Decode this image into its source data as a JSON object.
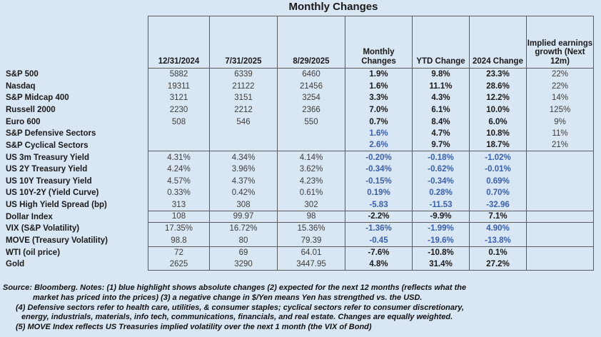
{
  "chart_data": {
    "type": "table",
    "title": "Monthly Changes",
    "columns": [
      "",
      "12/31/2024",
      "7/31/2025",
      "8/29/2025",
      "Monthly Changes",
      "YTD Change",
      "2024 Change",
      "Implied earnings growth (Next 12m)"
    ],
    "rows": [
      {
        "label": "S&P 500",
        "values": [
          "5882",
          "6339",
          "6460"
        ],
        "changes": [
          "1.9%",
          "9.8%",
          "23.3%"
        ],
        "blue": [
          false,
          false,
          false
        ],
        "implied": "22%",
        "end": false
      },
      {
        "label": "Nasdaq",
        "values": [
          "19311",
          "21122",
          "21456"
        ],
        "changes": [
          "1.6%",
          "11.1%",
          "28.6%"
        ],
        "blue": [
          false,
          false,
          false
        ],
        "implied": "22%",
        "end": false
      },
      {
        "label": "S&P Midcap 400",
        "values": [
          "3121",
          "3151",
          "3254"
        ],
        "changes": [
          "3.3%",
          "4.3%",
          "12.2%"
        ],
        "blue": [
          false,
          false,
          false
        ],
        "implied": "14%",
        "end": false
      },
      {
        "label": "Russell 2000",
        "values": [
          "2230",
          "2212",
          "2366"
        ],
        "changes": [
          "7.0%",
          "6.1%",
          "10.0%"
        ],
        "blue": [
          false,
          false,
          false
        ],
        "implied": "125%",
        "end": false
      },
      {
        "label": "Euro 600",
        "values": [
          "508",
          "546",
          "550"
        ],
        "changes": [
          "0.7%",
          "8.4%",
          "6.0%"
        ],
        "blue": [
          false,
          false,
          false
        ],
        "implied": "9%",
        "end": false
      },
      {
        "label": "S&P Defensive Sectors",
        "values": [
          "",
          "",
          ""
        ],
        "changes": [
          "1.6%",
          "4.7%",
          "10.8%"
        ],
        "blue": [
          true,
          false,
          false
        ],
        "implied": "11%",
        "end": false
      },
      {
        "label": "S&P Cyclical Sectors",
        "values": [
          "",
          "",
          ""
        ],
        "changes": [
          "2.6%",
          "9.7%",
          "18.7%"
        ],
        "blue": [
          true,
          false,
          false
        ],
        "implied": "21%",
        "end": true
      },
      {
        "label": "US 3m Treasury Yield",
        "values": [
          "4.31%",
          "4.34%",
          "4.14%"
        ],
        "changes": [
          "-0.20%",
          "-0.18%",
          "-1.02%"
        ],
        "blue": [
          true,
          true,
          true
        ],
        "implied": "",
        "end": false
      },
      {
        "label": "US 2Y Treasury Yield",
        "values": [
          "4.24%",
          "3.96%",
          "3.62%"
        ],
        "changes": [
          "-0.34%",
          "-0.62%",
          "-0.01%"
        ],
        "blue": [
          true,
          true,
          true
        ],
        "implied": "",
        "end": false
      },
      {
        "label": "US 10Y Treasury Yield",
        "values": [
          "4.57%",
          "4.37%",
          "4.23%"
        ],
        "changes": [
          "-0.15%",
          "-0.34%",
          "0.69%"
        ],
        "blue": [
          true,
          true,
          true
        ],
        "implied": "",
        "end": false
      },
      {
        "label": "US 10Y-2Y (Yield Curve)",
        "values": [
          "0.33%",
          "0.42%",
          "0.61%"
        ],
        "changes": [
          "0.19%",
          "0.28%",
          "0.70%"
        ],
        "blue": [
          true,
          true,
          true
        ],
        "implied": "",
        "end": false
      },
      {
        "label": "US High Yield Spread (bp)",
        "values": [
          "313",
          "308",
          "302"
        ],
        "changes": [
          "-5.83",
          "-11.53",
          "-32.96"
        ],
        "blue": [
          true,
          true,
          true
        ],
        "implied": "",
        "end": true
      },
      {
        "label": "Dollar Index",
        "values": [
          "108",
          "99.97",
          "98"
        ],
        "changes": [
          "-2.2%",
          "-9.9%",
          "7.1%"
        ],
        "blue": [
          false,
          false,
          false
        ],
        "implied": "",
        "end": true
      },
      {
        "label": "VIX (S&P Volatility)",
        "values": [
          "17.35%",
          "16.72%",
          "15.36%"
        ],
        "changes": [
          "-1.36%",
          "-1.99%",
          "4.90%"
        ],
        "blue": [
          true,
          true,
          true
        ],
        "implied": "",
        "end": false
      },
      {
        "label": "MOVE (Treasury Volatility)",
        "values": [
          "98.8",
          "80",
          "79.39"
        ],
        "changes": [
          "-0.45",
          "-19.6%",
          "-13.8%"
        ],
        "blue": [
          true,
          true,
          true
        ],
        "implied": "",
        "end": true
      },
      {
        "label": "WTI (oil price)",
        "values": [
          "72",
          "69",
          "64.01"
        ],
        "changes": [
          "-7.6%",
          "-10.8%",
          "0.1%"
        ],
        "blue": [
          false,
          false,
          false
        ],
        "implied": "",
        "end": false
      },
      {
        "label": "Gold",
        "values": [
          "2625",
          "3290",
          "3447.95"
        ],
        "changes": [
          "4.8%",
          "31.4%",
          "27.2%"
        ],
        "blue": [
          false,
          false,
          false
        ],
        "implied": "",
        "end": true
      }
    ],
    "legend_position": "none",
    "grid": true
  },
  "footnotes": [
    "Source: Bloomberg. Notes: (1) blue highlight shows absolute changes (2) expected for the next 12 months (reflects what the",
    "market has priced into the prices) (3) a negative change in $/Yen means Yen has strengthed vs. the USD.",
    "(4) Defensive sectors refer to health care, utilities, & consumer staples; cyclical sectors refer to consumer discretionary,",
    "energy, industrials, materials, info tech, communications, financials, and real estate. Changes are equally weighted.",
    "(5) MOVE Index reflects US Treasuries implied volatility over the next 1 month (the VIX of Bond)"
  ],
  "colors": {
    "background": "#d9e6f4",
    "blue_text": "#3a61ad",
    "black_text": "#1a1a1a",
    "border": "#5b5b5b"
  }
}
